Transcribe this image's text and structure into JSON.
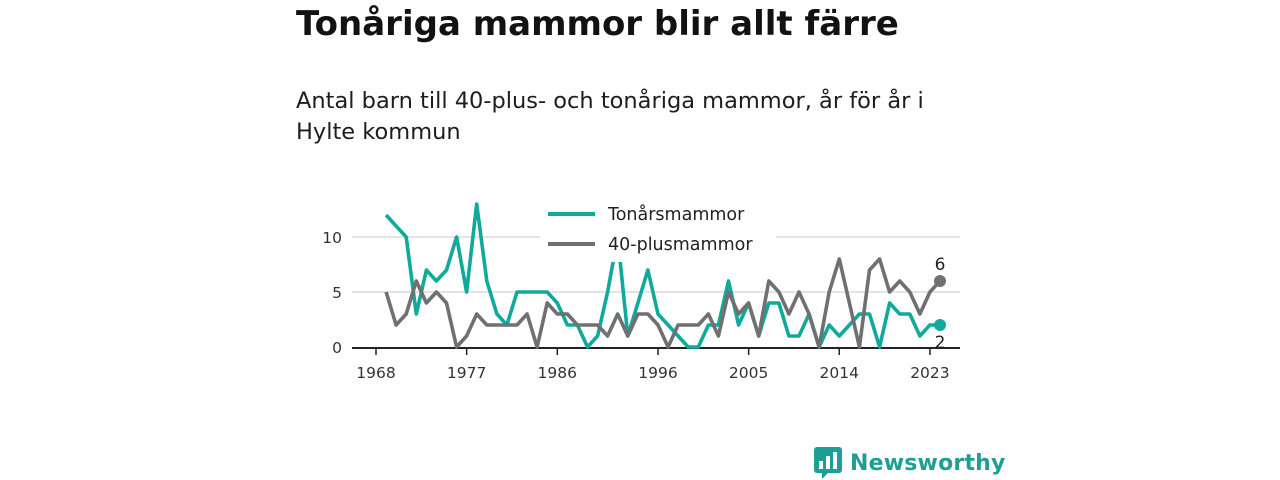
{
  "title": "Tonåriga mammor blir allt färre",
  "subtitle": "Antal barn till 40-plus- och tonåriga mammor, år för år i Hylte kommun",
  "brand": {
    "name": "Newsworthy",
    "icon": "newsworthy-logo-icon"
  },
  "colors": {
    "teen": "#11a99c",
    "forty": "#707070",
    "grid": "#dcdcdc",
    "axis": "#222222"
  },
  "chart_data": {
    "type": "line",
    "title": "",
    "xlabel": "",
    "ylabel": "",
    "x_ticks": [
      "1968",
      "1977",
      "1986",
      "1996",
      "2005",
      "2014",
      "2023"
    ],
    "y_ticks": [
      "0",
      "5",
      "10"
    ],
    "xlim": [
      1968,
      2024
    ],
    "ylim": [
      0,
      13
    ],
    "grid": true,
    "legend_position": "top-center",
    "x": [
      1968,
      1969,
      1970,
      1971,
      1972,
      1973,
      1974,
      1975,
      1976,
      1977,
      1978,
      1979,
      1980,
      1981,
      1982,
      1983,
      1984,
      1985,
      1986,
      1987,
      1988,
      1989,
      1990,
      1991,
      1992,
      1993,
      1994,
      1995,
      1996,
      1997,
      1998,
      1999,
      2000,
      2001,
      2002,
      2003,
      2004,
      2005,
      2006,
      2007,
      2008,
      2009,
      2010,
      2011,
      2012,
      2013,
      2014,
      2015,
      2016,
      2017,
      2018,
      2019,
      2020,
      2021,
      2022,
      2023,
      2024
    ],
    "series": [
      {
        "name": "Tonårsmammor",
        "color": "#11a99c",
        "values": [
          null,
          12,
          11,
          10,
          3,
          7,
          6,
          7,
          10,
          5,
          13,
          6,
          3,
          2,
          5,
          5,
          5,
          5,
          4,
          2,
          2,
          0,
          1,
          5,
          10,
          1,
          4,
          7,
          3,
          2,
          1,
          0,
          0,
          2,
          2,
          6,
          2,
          4,
          1,
          4,
          4,
          1,
          1,
          3,
          0,
          2,
          1,
          2,
          3,
          3,
          0,
          4,
          3,
          3,
          1,
          2,
          2
        ],
        "end_label": "2"
      },
      {
        "name": "40-plusmammor",
        "color": "#707070",
        "values": [
          null,
          5,
          2,
          3,
          6,
          4,
          5,
          4,
          0,
          1,
          3,
          2,
          2,
          2,
          2,
          3,
          0,
          4,
          3,
          3,
          2,
          2,
          2,
          1,
          3,
          1,
          3,
          3,
          2,
          0,
          2,
          2,
          2,
          3,
          1,
          5,
          3,
          4,
          1,
          6,
          5,
          3,
          5,
          3,
          0,
          5,
          8,
          4,
          0,
          7,
          8,
          5,
          6,
          5,
          3,
          5,
          6
        ],
        "end_label": "6"
      }
    ]
  }
}
